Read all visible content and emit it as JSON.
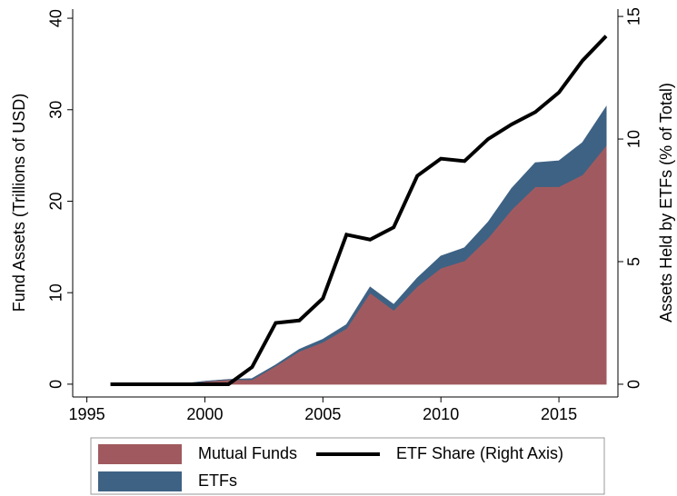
{
  "chart_data": {
    "type": "area",
    "x": [
      1996,
      1997,
      1998,
      1999,
      2000,
      2001,
      2002,
      2003,
      2004,
      2005,
      2006,
      2007,
      2008,
      2009,
      2010,
      2011,
      2012,
      2013,
      2014,
      2015,
      2016,
      2017
    ],
    "series": [
      {
        "name": "Mutual Funds",
        "color": "#a05a5f",
        "values": [
          0,
          0,
          0,
          0,
          0.3,
          0.5,
          0.5,
          2.0,
          3.6,
          4.6,
          6.1,
          10.0,
          8.1,
          10.7,
          12.7,
          13.5,
          16.0,
          19.1,
          21.6,
          21.6,
          22.9,
          26.1
        ]
      },
      {
        "name": "ETFs",
        "color": "#3e6284",
        "values": [
          0,
          0,
          0,
          0,
          0,
          0,
          0.1,
          0.1,
          0.2,
          0.3,
          0.4,
          0.6,
          0.6,
          0.9,
          1.3,
          1.4,
          1.7,
          2.3,
          2.6,
          2.8,
          3.5,
          4.2
        ]
      },
      {
        "name": "ETF Share (Right Axis)",
        "color": "#000000",
        "type": "line",
        "axis": "y2",
        "values": [
          0,
          0,
          0,
          0,
          0,
          0,
          0.7,
          2.5,
          2.6,
          3.5,
          6.1,
          5.9,
          6.4,
          8.5,
          9.2,
          9.1,
          10.0,
          10.6,
          11.1,
          11.9,
          13.2,
          14.2
        ]
      }
    ],
    "xlim": [
      1994.4,
      2017.5
    ],
    "xticks": [
      1995,
      2000,
      2005,
      2010,
      2015
    ],
    "ylim": [
      -1.4,
      41
    ],
    "yticks": [
      0,
      10,
      20,
      30,
      40
    ],
    "y2lim": [
      -0.52,
      15.3
    ],
    "y2ticks": [
      0,
      5,
      10,
      15
    ],
    "ylabel": "Fund Assets (Trillions of USD)",
    "y2label": "Assets Held by ETFs (% of Total)"
  }
}
